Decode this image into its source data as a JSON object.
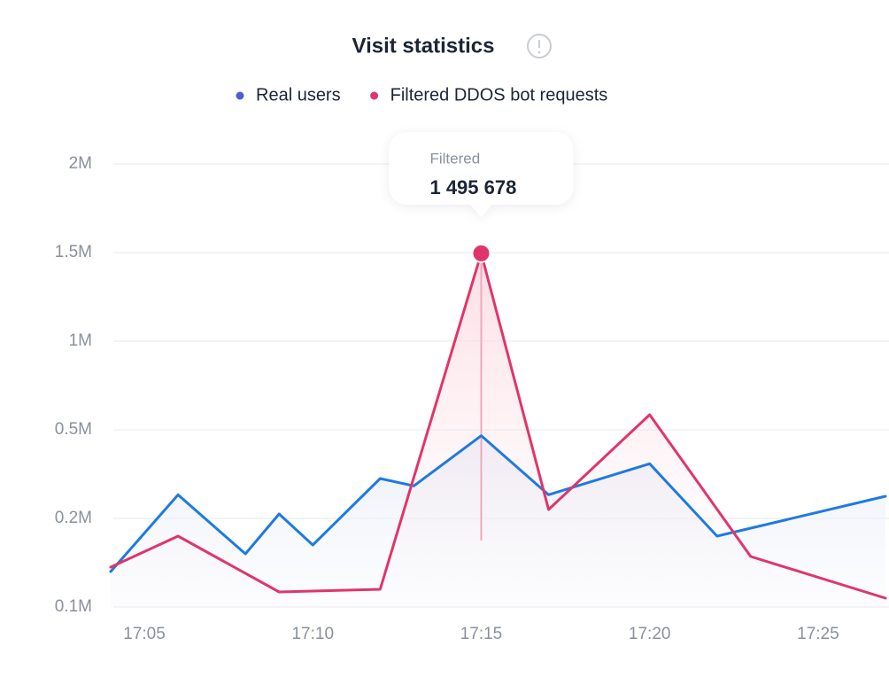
{
  "chart_data": {
    "type": "line",
    "title": "Visit statistics",
    "series": [
      {
        "name": "Real users",
        "color": "#1f7ae0",
        "dot_color": "#4a5fd0",
        "x": [
          "17:04",
          "17:06",
          "17:08",
          "17:09",
          "17:10",
          "17:12",
          "17:13",
          "17:15",
          "17:17",
          "17:20",
          "17:22",
          "17:27"
        ],
        "values": [
          140000,
          280000,
          160000,
          215000,
          170000,
          335000,
          310000,
          480000,
          280000,
          385000,
          180000,
          275000
        ]
      },
      {
        "name": "Filtered DDOS bot requests",
        "color": "#e0356a",
        "dot_color": "#e0356a",
        "x": [
          "17:04",
          "17:06",
          "17:09",
          "17:12",
          "17:15",
          "17:17",
          "17:20",
          "17:23",
          "17:27"
        ],
        "values": [
          145000,
          180000,
          117000,
          120000,
          1495678,
          230000,
          585000,
          157000,
          110000
        ]
      }
    ],
    "xlim": [
      "17:04",
      "17:27"
    ],
    "xticks": [
      "17:05",
      "17:10",
      "17:15",
      "17:20",
      "17:25"
    ],
    "ylim": [
      100000,
      2000000
    ],
    "yticks": [
      {
        "value": 100000,
        "label": "0.1M"
      },
      {
        "value": 200000,
        "label": "0.2M"
      },
      {
        "value": 500000,
        "label": "0.5M"
      },
      {
        "value": 1000000,
        "label": "1M"
      },
      {
        "value": 1500000,
        "label": "1.5M"
      },
      {
        "value": 2000000,
        "label": "2M"
      }
    ],
    "grid": true,
    "tooltip": {
      "title": "Filtered",
      "text": "1 495 678"
    }
  }
}
